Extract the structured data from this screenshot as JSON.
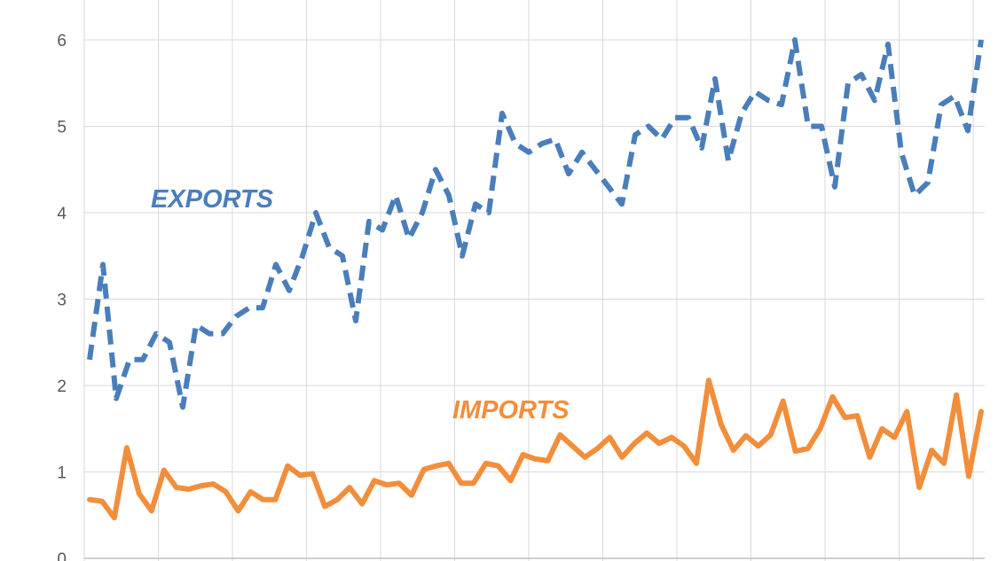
{
  "chart_data": {
    "type": "line",
    "title": "",
    "xlabel": "",
    "ylabel": "",
    "ylim": [
      0,
      6.4
    ],
    "y_ticks": [
      0,
      1,
      2,
      3,
      4,
      5,
      6
    ],
    "grid": true,
    "series": [
      {
        "name": "EXPORTS",
        "color": "#4a7ebb",
        "style": "dashed",
        "values": [
          2.3,
          3.4,
          1.85,
          2.3,
          2.3,
          2.6,
          2.5,
          1.75,
          2.7,
          2.6,
          2.6,
          2.8,
          2.9,
          2.9,
          3.4,
          3.1,
          3.5,
          4.0,
          3.6,
          3.5,
          2.75,
          3.9,
          3.8,
          4.2,
          3.7,
          4.0,
          4.5,
          4.2,
          3.5,
          4.1,
          4.0,
          5.15,
          4.8,
          4.7,
          4.8,
          4.85,
          4.45,
          4.7,
          4.5,
          4.3,
          4.1,
          4.9,
          5.0,
          4.85,
          5.1,
          5.1,
          4.75,
          5.55,
          4.6,
          5.15,
          5.4,
          5.3,
          5.25,
          6.0,
          5.0,
          5.0,
          4.3,
          5.5,
          5.6,
          5.3,
          5.95,
          4.7,
          4.2,
          4.35,
          5.25,
          5.35,
          4.95,
          6.0
        ]
      },
      {
        "name": "IMPORTS",
        "color": "#f28e3b",
        "style": "solid",
        "values": [
          0.68,
          0.66,
          0.47,
          1.28,
          0.75,
          0.55,
          1.02,
          0.82,
          0.8,
          0.84,
          0.86,
          0.77,
          0.55,
          0.77,
          0.68,
          0.68,
          1.07,
          0.96,
          0.98,
          0.6,
          0.68,
          0.82,
          0.63,
          0.9,
          0.85,
          0.87,
          0.73,
          1.03,
          1.07,
          1.1,
          0.87,
          0.87,
          1.1,
          1.07,
          0.9,
          1.2,
          1.15,
          1.13,
          1.43,
          1.3,
          1.17,
          1.27,
          1.4,
          1.17,
          1.33,
          1.45,
          1.33,
          1.4,
          1.3,
          1.1,
          2.06,
          1.55,
          1.25,
          1.42,
          1.3,
          1.43,
          1.82,
          1.24,
          1.27,
          1.5,
          1.87,
          1.63,
          1.65,
          1.17,
          1.5,
          1.4,
          1.7,
          0.82,
          1.25,
          1.1,
          1.89,
          0.95,
          1.7
        ]
      }
    ]
  }
}
